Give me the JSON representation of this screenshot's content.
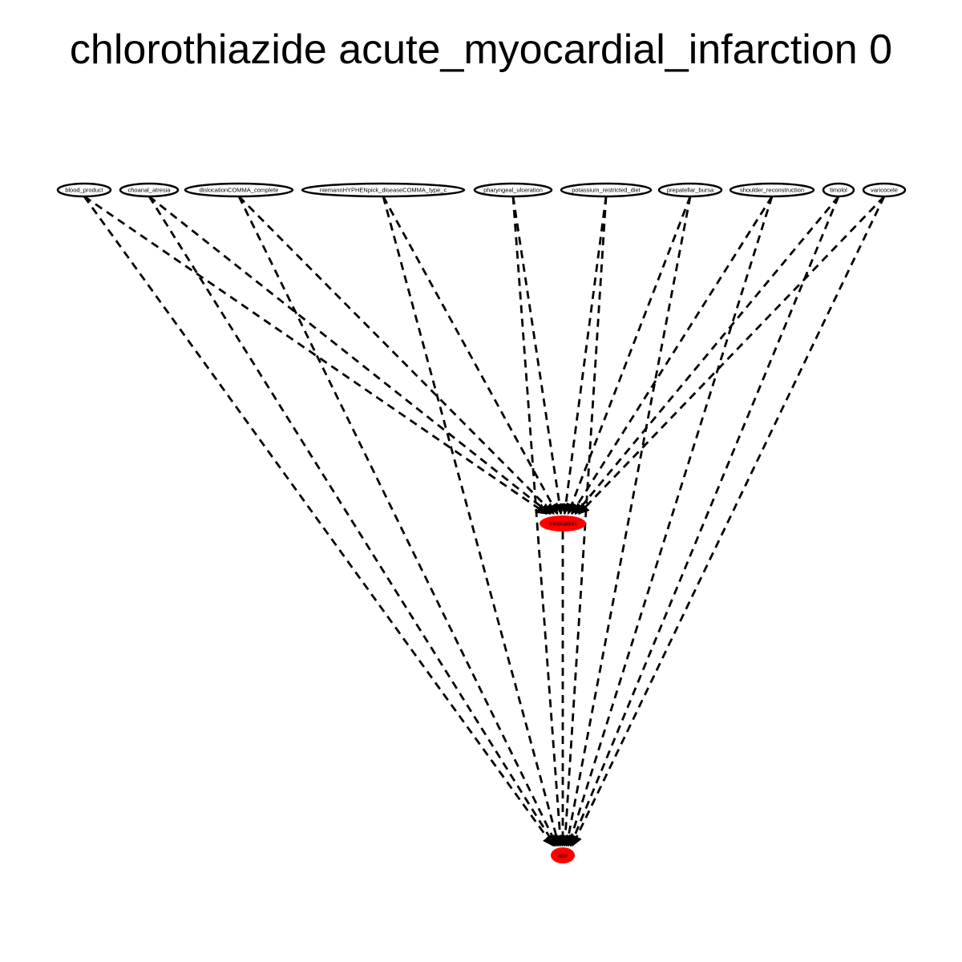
{
  "title": "chlorothiazide acute_myocardial_infarction 0",
  "nodes": [
    {
      "id": "blood_product",
      "label": "blood_product",
      "tier": "source"
    },
    {
      "id": "choanal_atresia",
      "label": "choanal_atresia",
      "tier": "source"
    },
    {
      "id": "dislocation_complete",
      "label": "dislocationCOMMA_complete",
      "tier": "source"
    },
    {
      "id": "niemann_pick",
      "label": "niemannHYPHENpick_diseaseCOMMA_type_c",
      "tier": "source"
    },
    {
      "id": "pharyngeal_ulceration",
      "label": "pharyngeal_ulceration",
      "tier": "source"
    },
    {
      "id": "potassium_restricted_diet",
      "label": "potassium_restricted_diet",
      "tier": "source"
    },
    {
      "id": "prepatellar_bursa",
      "label": "prepatellar_bursa",
      "tier": "source"
    },
    {
      "id": "shoulder_reconstruction",
      "label": "shoulder_reconstruction",
      "tier": "source"
    },
    {
      "id": "timolol",
      "label": "timolol",
      "tier": "source"
    },
    {
      "id": "varicocele",
      "label": "varicocele",
      "tier": "source"
    },
    {
      "id": "medication",
      "label": "medication",
      "tier": "middle"
    },
    {
      "id": "ade",
      "label": "ade",
      "tier": "target"
    }
  ],
  "edges": [
    {
      "from": "blood_product",
      "to": "medication"
    },
    {
      "from": "choanal_atresia",
      "to": "medication"
    },
    {
      "from": "dislocation_complete",
      "to": "medication"
    },
    {
      "from": "niemann_pick",
      "to": "medication"
    },
    {
      "from": "pharyngeal_ulceration",
      "to": "medication"
    },
    {
      "from": "potassium_restricted_diet",
      "to": "medication"
    },
    {
      "from": "prepatellar_bursa",
      "to": "medication"
    },
    {
      "from": "shoulder_reconstruction",
      "to": "medication"
    },
    {
      "from": "timolol",
      "to": "medication"
    },
    {
      "from": "varicocele",
      "to": "medication"
    },
    {
      "from": "blood_product",
      "to": "ade"
    },
    {
      "from": "choanal_atresia",
      "to": "ade"
    },
    {
      "from": "dislocation_complete",
      "to": "ade"
    },
    {
      "from": "niemann_pick",
      "to": "ade"
    },
    {
      "from": "pharyngeal_ulceration",
      "to": "ade"
    },
    {
      "from": "potassium_restricted_diet",
      "to": "ade"
    },
    {
      "from": "prepatellar_bursa",
      "to": "ade"
    },
    {
      "from": "shoulder_reconstruction",
      "to": "ade"
    },
    {
      "from": "timolol",
      "to": "ade"
    },
    {
      "from": "varicocele",
      "to": "ade"
    },
    {
      "from": "medication",
      "to": "ade"
    }
  ],
  "colors": {
    "highlight_fill": "#ff0000",
    "plain_fill": "#ffffff",
    "stroke": "#000000",
    "edge": "#000000"
  },
  "edge_style": "dashed"
}
